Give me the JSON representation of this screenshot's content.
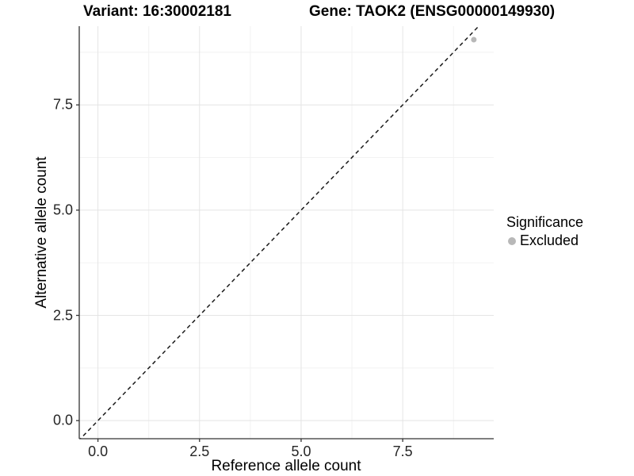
{
  "chart_data": {
    "type": "scatter",
    "title_variant": "Variant: 16:30002181",
    "title_gene": "Gene: TAOK2 (ENSG00000149930)",
    "xlabel": "Reference allele count",
    "ylabel": "Alternative allele count",
    "xlim": [
      -0.46,
      9.74
    ],
    "ylim": [
      -0.43,
      9.37
    ],
    "xticks": [
      {
        "value": 0.0,
        "label": "0.0"
      },
      {
        "value": 2.5,
        "label": "2.5"
      },
      {
        "value": 5.0,
        "label": "5.0"
      },
      {
        "value": 7.5,
        "label": "7.5"
      }
    ],
    "yticks": [
      {
        "value": 0.0,
        "label": "0.0"
      },
      {
        "value": 2.5,
        "label": "2.5"
      },
      {
        "value": 5.0,
        "label": "5.0"
      },
      {
        "value": 7.5,
        "label": "7.5"
      }
    ],
    "xminor": [
      1.25,
      3.75,
      6.25,
      8.75
    ],
    "yminor": [
      1.25,
      3.75,
      6.25,
      8.75
    ],
    "grid": "on",
    "reference_line": {
      "type": "abline",
      "slope": 1,
      "intercept": 0,
      "style": "dashed"
    },
    "series": [
      {
        "name": "Excluded",
        "points": [
          {
            "x": 9.25,
            "y": 9.05
          }
        ],
        "color": "#b8b8b8"
      }
    ],
    "legend": {
      "position": "right",
      "title": "Significance",
      "items": [
        {
          "label": "Excluded",
          "color": "#b8b8b8"
        }
      ]
    },
    "colors": {
      "grid_major": "#e4e4e4",
      "grid_minor": "#f2f2f2",
      "axis_line": "#333333",
      "tick_mark": "#333333",
      "reference_line": "#1a1a1a",
      "title_text": "#000000",
      "tick_text": "#262626"
    }
  }
}
